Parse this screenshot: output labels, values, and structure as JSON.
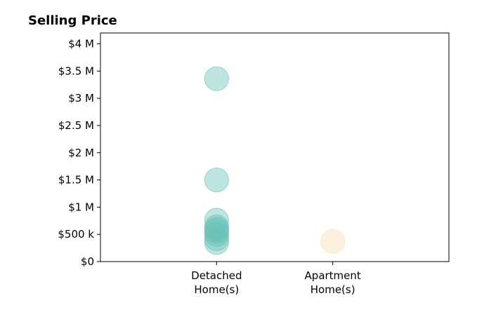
{
  "chart_data": {
    "type": "scatter",
    "title": "Selling Price",
    "xlabel": "",
    "ylabel": "",
    "categories": [
      {
        "lines": [
          "Detached",
          "Home(s)"
        ]
      },
      {
        "lines": [
          "Apartment",
          "Home(s)"
        ]
      }
    ],
    "ylim": [
      0,
      4200000
    ],
    "xlim": [
      0,
      3
    ],
    "y_ticks": [
      {
        "value": 0,
        "label": "$0"
      },
      {
        "value": 500000,
        "label": "$500 k"
      },
      {
        "value": 1000000,
        "label": "$1 M"
      },
      {
        "value": 1500000,
        "label": "$1.5 M"
      },
      {
        "value": 2000000,
        "label": "$2 M"
      },
      {
        "value": 2500000,
        "label": "$2.5 M"
      },
      {
        "value": 3000000,
        "label": "$3 M"
      },
      {
        "value": 3500000,
        "label": "$3.5 M"
      },
      {
        "value": 4000000,
        "label": "$4 M"
      }
    ],
    "grid": false,
    "series": [
      {
        "category_index": 0,
        "color": "#66c2b6",
        "values": [
          3360000,
          1500000,
          760000,
          640000,
          600000,
          560000,
          500000,
          420000,
          350000
        ]
      },
      {
        "category_index": 1,
        "color": "#f5deb0",
        "values": [
          370000
        ]
      }
    ]
  }
}
